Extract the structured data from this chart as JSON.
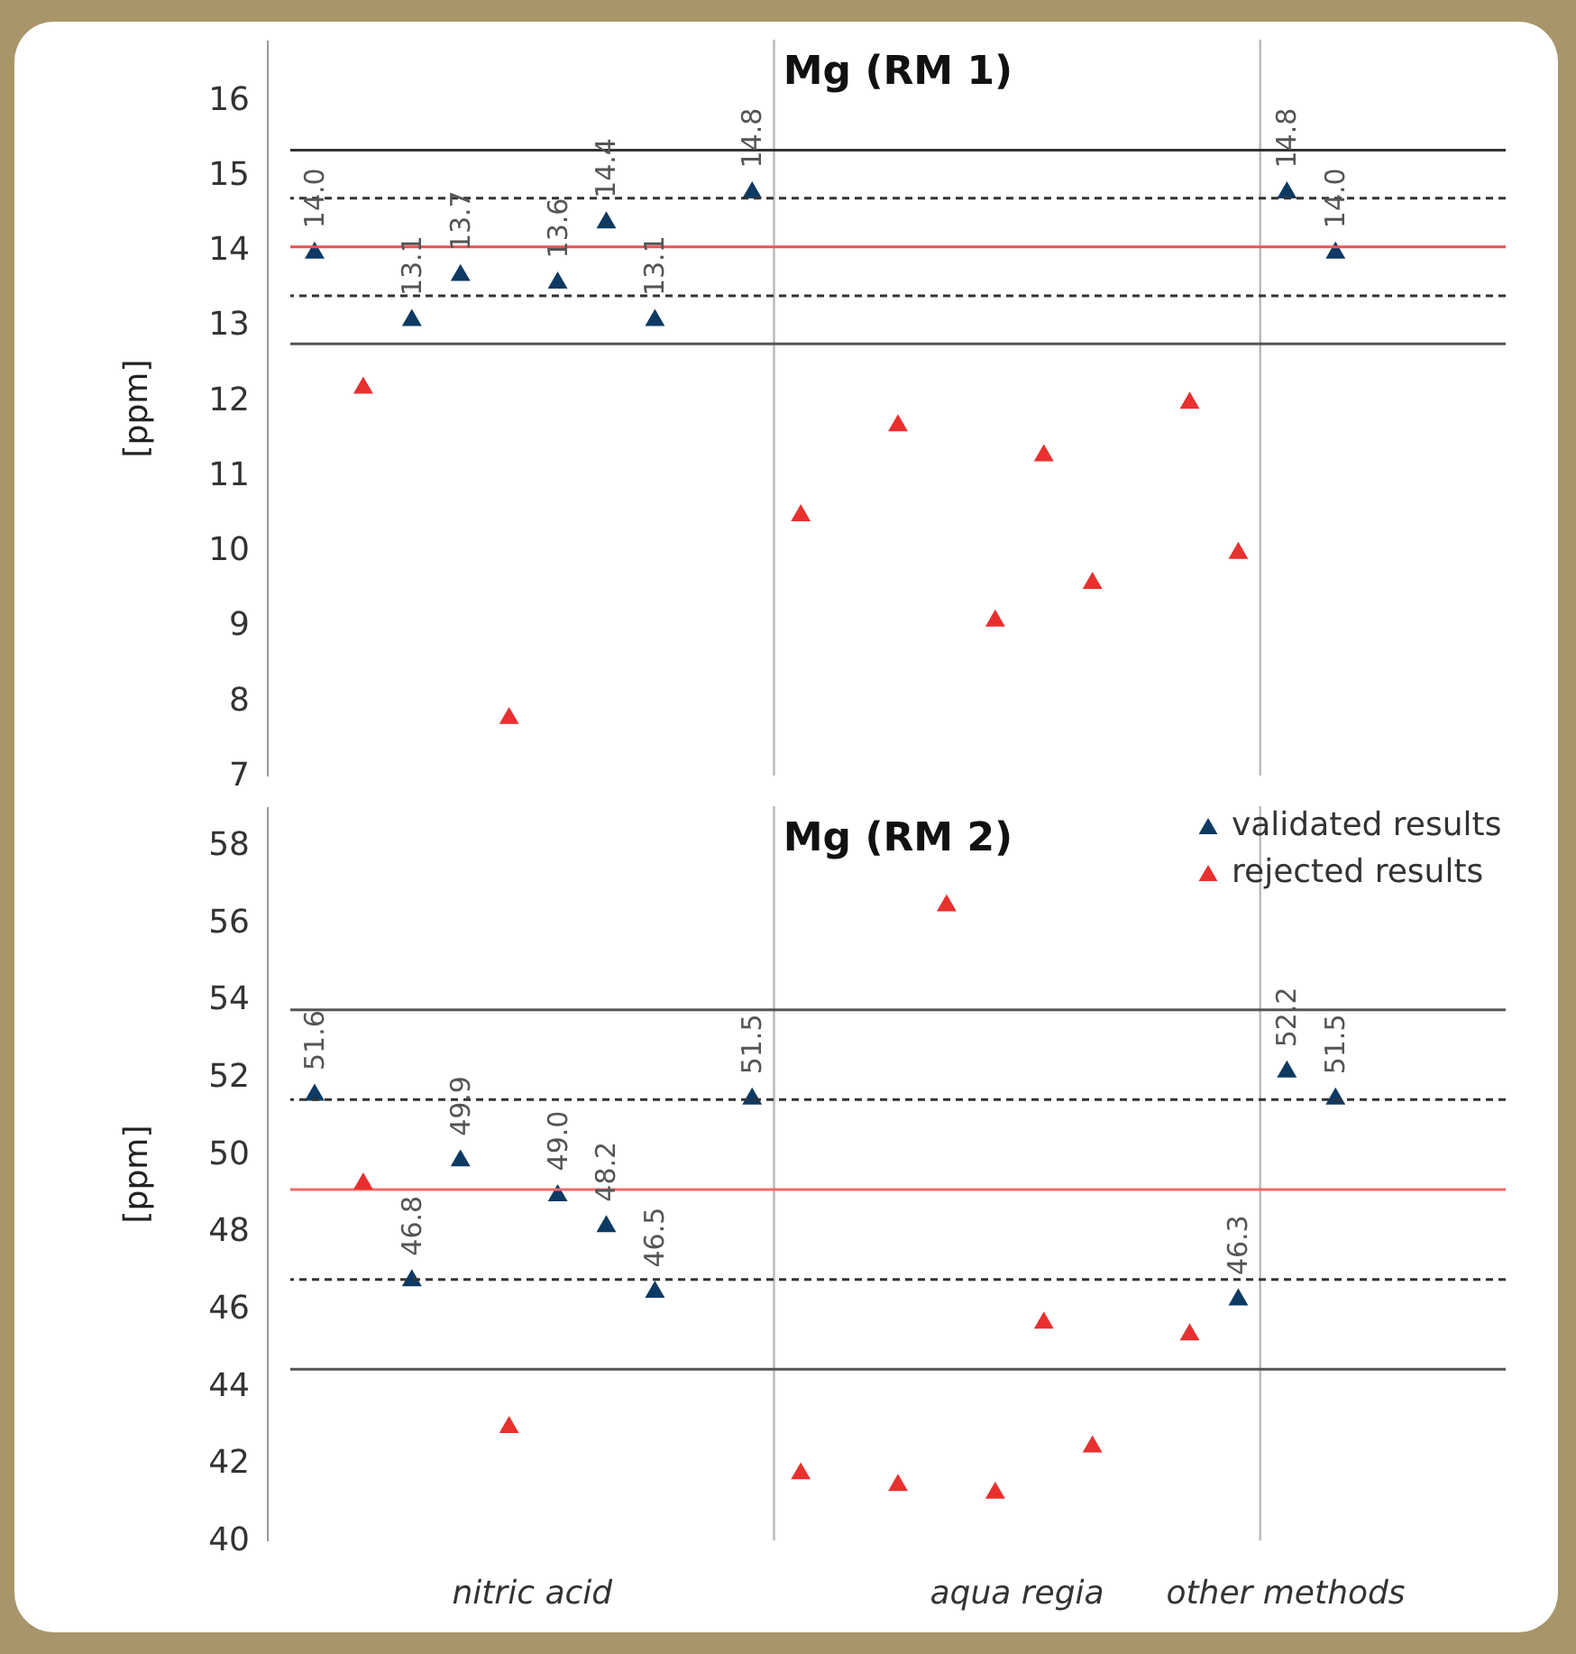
{
  "chart_data": [
    {
      "type": "scatter",
      "title": "Mg (RM 1)",
      "ylabel": "[ppm]",
      "categories": [
        null,
        null,
        null,
        null,
        null,
        null,
        null,
        null,
        null,
        null,
        null,
        null,
        null,
        null,
        null,
        null,
        null,
        null,
        null,
        null,
        null,
        null,
        null,
        null,
        null
      ],
      "ylim": [
        7,
        16.8
      ],
      "yticks": [
        7,
        8,
        9,
        10,
        11,
        12,
        13,
        14,
        15,
        16
      ],
      "tick_labels": "y",
      "marker": "triangle",
      "legend": false,
      "series": [
        {
          "color": "#0d3a63",
          "values": [
            14.0,
            null,
            13.1,
            13.7,
            null,
            13.6,
            14.4,
            13.1,
            null,
            14.8,
            null,
            null,
            null,
            null,
            null,
            null,
            null,
            null,
            null,
            null,
            14.8,
            14.0,
            null,
            null,
            null
          ],
          "value_labels": [
            "14.0",
            null,
            "13.1",
            "13.7",
            null,
            "13.6",
            "14.4",
            "13.1",
            null,
            "14.8",
            null,
            null,
            null,
            null,
            null,
            null,
            null,
            null,
            null,
            null,
            "14.8",
            "14.0",
            null,
            null,
            null
          ]
        },
        {
          "color": "#e8302e",
          "values": [
            null,
            12.2,
            null,
            null,
            7.8,
            null,
            null,
            null,
            null,
            null,
            10.5,
            null,
            11.7,
            null,
            9.1,
            11.3,
            9.6,
            null,
            12.0,
            10.0,
            null,
            null,
            null,
            null,
            null
          ]
        }
      ],
      "ref_lines": [
        {
          "axis": "y",
          "value": 15.33,
          "color": "#333333",
          "line_style": "solid"
        },
        {
          "axis": "y",
          "value": 14.69,
          "color": "#333333",
          "line_style": "dashed"
        },
        {
          "axis": "y",
          "value": 14.04,
          "color": "#f05050",
          "line_style": "solid"
        },
        {
          "axis": "y",
          "value": 13.39,
          "color": "#333333",
          "line_style": "dashed"
        },
        {
          "axis": "y",
          "value": 12.75,
          "color": "#555555",
          "line_style": "solid"
        }
      ]
    },
    {
      "type": "scatter",
      "title": "Mg (RM 2)",
      "ylabel": "[ppm]",
      "categories": [
        null,
        null,
        null,
        null,
        null,
        null,
        null,
        null,
        null,
        null,
        null,
        null,
        null,
        null,
        null,
        null,
        null,
        null,
        null,
        null,
        null,
        null,
        null,
        null,
        null
      ],
      "ylim": [
        40,
        59
      ],
      "yticks": [
        40,
        42,
        44,
        46,
        48,
        50,
        52,
        54,
        56,
        58
      ],
      "tick_labels": "y",
      "marker": "triangle",
      "legend": "top right",
      "series": [
        {
          "name": "validated results",
          "color": "#0d3a63",
          "values": [
            51.6,
            null,
            46.8,
            49.9,
            null,
            49.0,
            48.2,
            46.5,
            null,
            51.5,
            null,
            null,
            null,
            null,
            null,
            null,
            null,
            null,
            null,
            46.3,
            52.2,
            51.5,
            null,
            null,
            null
          ],
          "value_labels": [
            "51.6",
            null,
            "46.8",
            "49.9",
            null,
            "49.0",
            "48.2",
            "46.5",
            null,
            "51.5",
            null,
            null,
            null,
            null,
            null,
            null,
            null,
            null,
            null,
            "46.3",
            "52.2",
            "51.5",
            null,
            null,
            null
          ]
        },
        {
          "name": "rejected results",
          "color": "#e8302e",
          "values": [
            null,
            49.3,
            null,
            null,
            43.0,
            null,
            null,
            null,
            null,
            null,
            41.8,
            null,
            41.5,
            56.5,
            41.3,
            45.7,
            42.5,
            null,
            45.4,
            null,
            null,
            null,
            null,
            null,
            null
          ]
        }
      ],
      "ref_lines": [
        {
          "axis": "y",
          "value": 53.73,
          "color": "#555555",
          "line_style": "solid"
        },
        {
          "axis": "y",
          "value": 51.41,
          "color": "#333333",
          "line_style": "dashed"
        },
        {
          "axis": "y",
          "value": 49.08,
          "color": "#f06a6a",
          "line_style": "solid"
        },
        {
          "axis": "y",
          "value": 46.75,
          "color": "#333333",
          "line_style": "dashed"
        },
        {
          "axis": "y",
          "value": 44.43,
          "color": "#555555",
          "line_style": "solid"
        }
      ],
      "annotations": [
        "nitric acid",
        "aqua regia",
        "other methods"
      ]
    }
  ]
}
